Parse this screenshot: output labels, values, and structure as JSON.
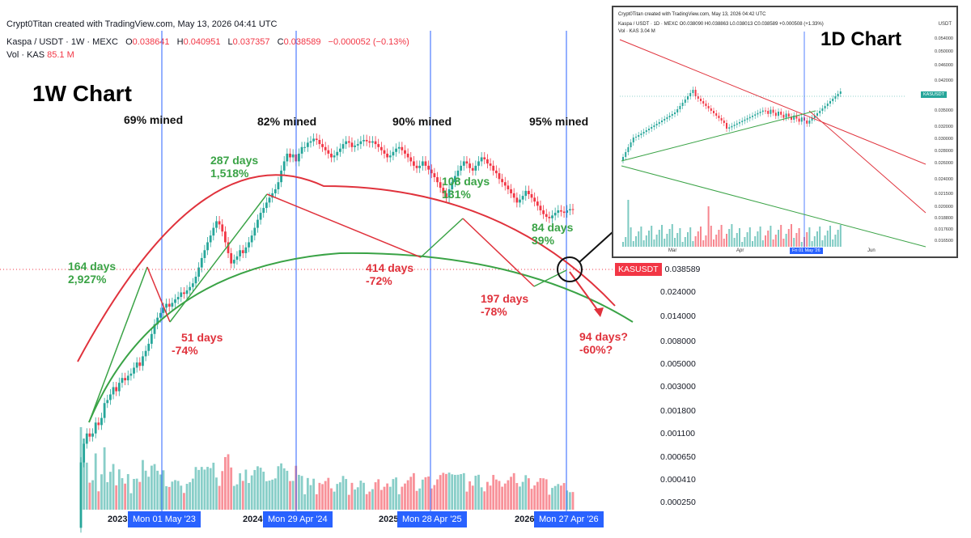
{
  "header": {
    "creator": "Crypt0Titan created with TradingView.com, May 13, 2026 04:41 UTC",
    "symbol": "Kaspa / USDT · 1W · MEXC",
    "o_label": "O",
    "o_val": "0.038641",
    "h_label": "H",
    "h_val": "0.040951",
    "l_label": "L",
    "l_val": "0.037357",
    "c_label": "C",
    "c_val": "0.038589",
    "change": "−0.000052 (−0.13%)",
    "vol_label": "Vol · KAS",
    "vol_val": "85.1 M"
  },
  "chart_title": "1W Chart",
  "mined_labels": [
    "69% mined",
    "82% mined",
    "90% mined",
    "95% mined"
  ],
  "annotations": {
    "a1_days": "164 days",
    "a1_pct": "2,927%",
    "a2_days": "51 days",
    "a2_pct": "-74%",
    "a3_days": "287 days",
    "a3_pct": "1,518%",
    "a4_days": "414 days",
    "a4_pct": "-72%",
    "a5_days": "108 days",
    "a5_pct": "131%",
    "a6_days": "197 days",
    "a6_pct": "-78%",
    "a7_days": "84 days",
    "a7_pct": "39%",
    "a8_days": "94 days?",
    "a8_pct": "-60%?"
  },
  "price_tag": {
    "symbol": "KASUSDT",
    "value": "0.038589"
  },
  "colors": {
    "up": "#26a69a",
    "down": "#f23645",
    "arc_red": "#e0323c",
    "arc_green": "#3aa346",
    "halving_line": "#2962ff"
  },
  "x_years": [
    "2023",
    "2024",
    "2025",
    "2026"
  ],
  "x_dates": [
    "Mon 01 May '23",
    "Mon 29 Apr '24",
    "Mon 28 Apr '25",
    "Mon 27 Apr '26"
  ],
  "chart_data": {
    "type": "candlestick",
    "scale": "log",
    "title": "Kaspa / USDT · 1W · MEXC",
    "y_ticks": [
      "0.024000",
      "0.014000",
      "0.008000",
      "0.005000",
      "0.003000",
      "0.001800",
      "0.001100",
      "0.000650",
      "0.000410",
      "0.000250"
    ],
    "ylim": [
      0.0002,
      0.2
    ],
    "last_price": 0.038589,
    "legs": [
      {
        "label": "164 days",
        "change": "2,927%",
        "direction": "up"
      },
      {
        "label": "51 days",
        "change": "-74%",
        "direction": "down"
      },
      {
        "label": "287 days",
        "change": "1,518%",
        "direction": "up"
      },
      {
        "label": "414 days",
        "change": "-72%",
        "direction": "down"
      },
      {
        "label": "108 days",
        "change": "131%",
        "direction": "up"
      },
      {
        "label": "197 days",
        "change": "-78%",
        "direction": "down"
      },
      {
        "label": "84 days",
        "change": "39%",
        "direction": "up"
      },
      {
        "label": "94 days?",
        "change": "-60%?",
        "direction": "down"
      }
    ],
    "approx_weekly_closes": [
      0.00016,
      0.00024,
      0.0003,
      0.00028,
      0.0003,
      0.00038,
      0.00036,
      0.00042,
      0.00058,
      0.00062,
      0.0007,
      0.00082,
      0.00075,
      0.0009,
      0.001,
      0.00095,
      0.00105,
      0.0011,
      0.00125,
      0.0014,
      0.0013,
      0.0016,
      0.0018,
      0.0021,
      0.0026,
      0.0032,
      0.0037,
      0.0041,
      0.0046,
      0.005,
      0.0047,
      0.0051,
      0.0055,
      0.0058,
      0.0064,
      0.0062,
      0.0067,
      0.0072,
      0.0078,
      0.009,
      0.011,
      0.0135,
      0.016,
      0.019,
      0.022,
      0.026,
      0.03,
      0.028,
      0.024,
      0.019,
      0.015,
      0.012,
      0.013,
      0.014,
      0.016,
      0.015,
      0.017,
      0.019,
      0.022,
      0.026,
      0.031,
      0.036,
      0.04,
      0.045,
      0.05,
      0.055,
      0.06,
      0.07,
      0.09,
      0.11,
      0.13,
      0.12,
      0.128,
      0.11,
      0.13,
      0.15,
      0.15,
      0.165,
      0.17,
      0.18,
      0.175,
      0.16,
      0.15,
      0.14,
      0.13,
      0.12,
      0.125,
      0.135,
      0.145,
      0.16,
      0.17,
      0.165,
      0.15,
      0.155,
      0.16,
      0.17,
      0.175,
      0.17,
      0.165,
      0.17,
      0.16,
      0.15,
      0.14,
      0.13,
      0.12,
      0.125,
      0.135,
      0.145,
      0.15,
      0.14,
      0.13,
      0.12,
      0.11,
      0.1,
      0.095,
      0.1,
      0.11,
      0.1,
      0.092,
      0.085,
      0.078,
      0.07,
      0.062,
      0.055,
      0.05,
      0.06,
      0.07,
      0.08,
      0.09,
      0.1,
      0.11,
      0.105,
      0.095,
      0.09,
      0.1,
      0.11,
      0.12,
      0.115,
      0.105,
      0.1,
      0.09,
      0.085,
      0.075,
      0.07,
      0.065,
      0.06,
      0.055,
      0.05,
      0.045,
      0.048,
      0.052,
      0.058,
      0.054,
      0.05,
      0.046,
      0.042,
      0.038,
      0.035,
      0.033,
      0.032,
      0.034,
      0.036,
      0.038,
      0.037,
      0.036,
      0.038,
      0.039,
      0.0386
    ]
  },
  "inset": {
    "creator": "Crypt0Titan created with TradingView.com, May 13, 2026 04:42 UTC",
    "symbol": "Kaspa / USDT · 1D · MEXC  O0.038090 H0.038863 L0.038013 C0.038589 +0.000508 (+1.33%)",
    "vol": "Vol · KAS  3.04 M",
    "title": "1D Chart",
    "unit": "USDT",
    "y_ticks": [
      "0.054000",
      "0.050000",
      "0.046000",
      "0.042000",
      "0.038589",
      "0.035000",
      "0.032000",
      "0.030000",
      "0.028000",
      "0.026000",
      "0.024000",
      "0.021500",
      "0.020000",
      "0.018800",
      "0.017600",
      "0.016500"
    ],
    "tag": "KASUSDT",
    "x_labels": [
      "Mar",
      "Apr",
      "Jun"
    ],
    "date_tag": "Fri 01 May '26"
  }
}
